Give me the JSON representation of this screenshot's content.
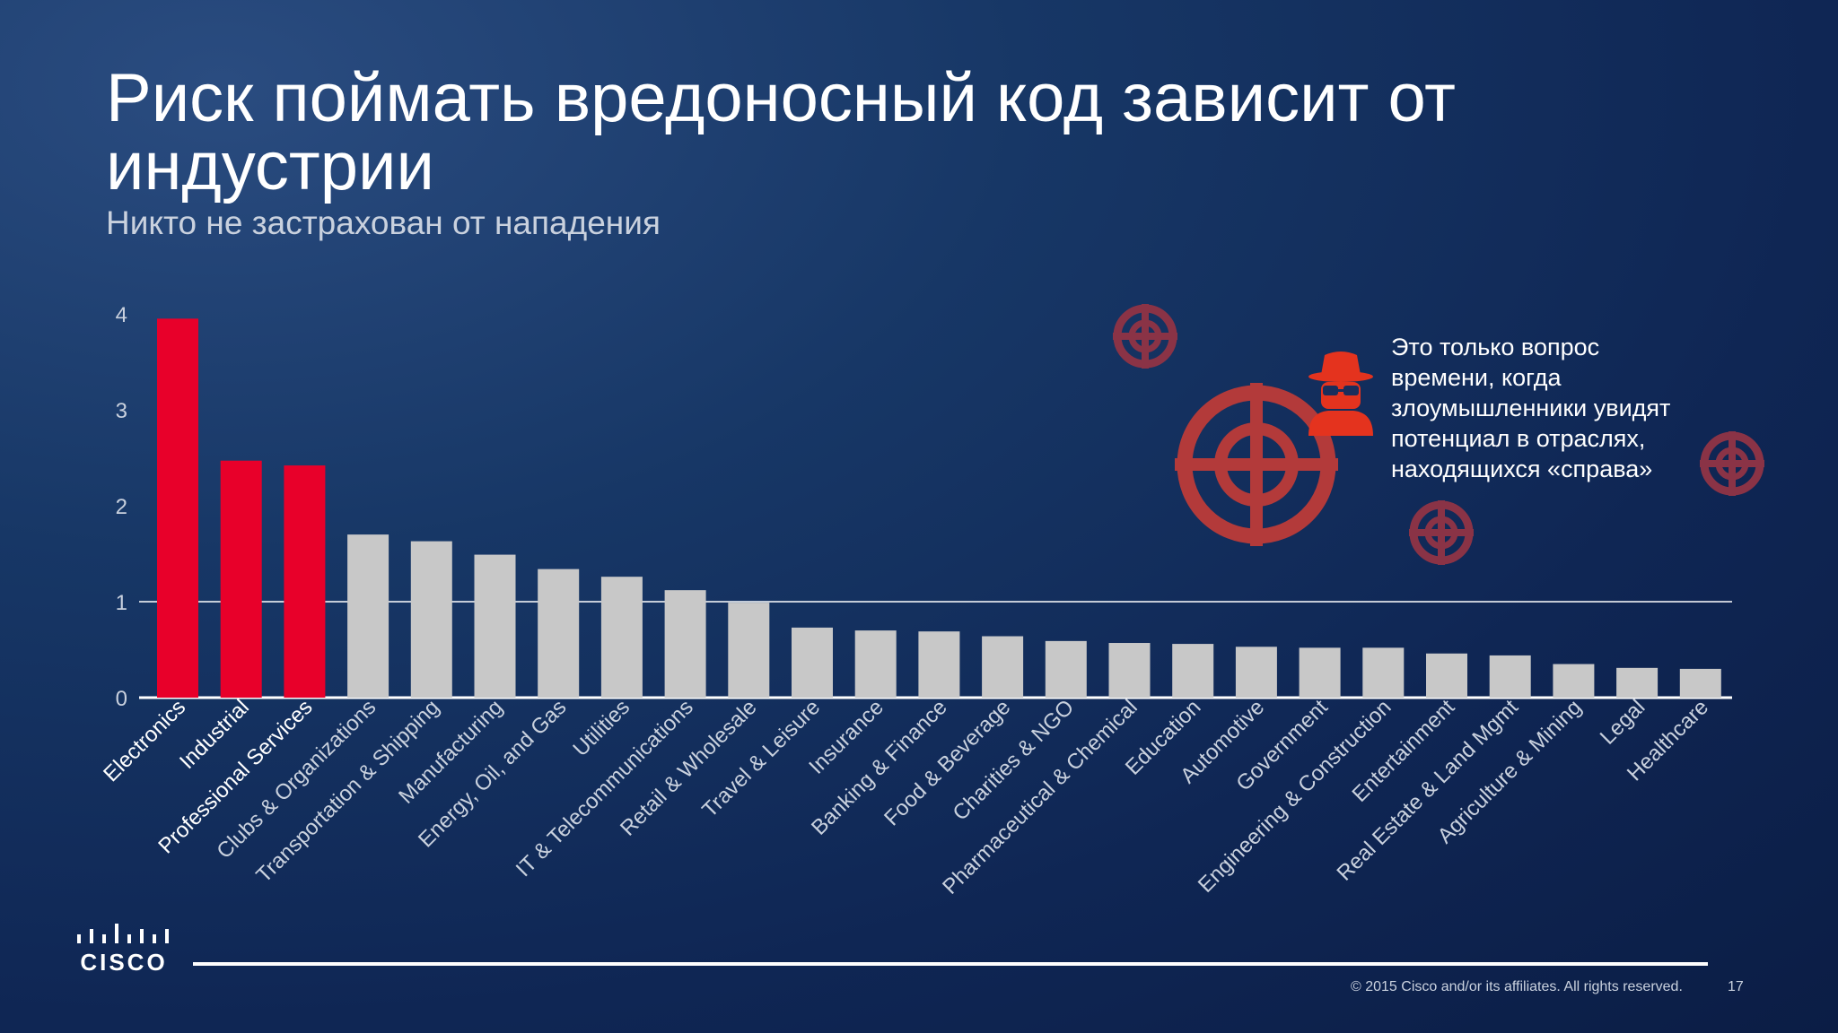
{
  "slide": {
    "title": "Риск поймать вредоносный код зависит от индустрии",
    "subtitle": "Никто не застрахован от нападения",
    "callout": "Это только вопрос времени, когда злоумышленники увидят потенциал в отраслях, находящихся «справа»",
    "logo_text": "CISCO",
    "copyright": "© 2015  Cisco and/or its affiliates. All rights reserved.",
    "page_number": "17"
  },
  "colors": {
    "highlight": "#e8002a",
    "normal": "#c8c8c8",
    "target": "#b33a3a",
    "small_target": "#8a3346",
    "hacker": "#e4331e",
    "axis": "#ffffff"
  },
  "icons": [
    "target-icon",
    "hacker-icon"
  ],
  "chart_data": {
    "type": "bar",
    "title": "",
    "xlabel": "",
    "ylabel": "",
    "ylim": [
      0,
      4
    ],
    "yticks": [
      0,
      1,
      2,
      3,
      4
    ],
    "reference_line": 1,
    "highlight_count": 3,
    "categories": [
      "Electronics",
      "Industrial",
      "Professional Services",
      "Clubs & Organizations",
      "Transportation & Shipping",
      "Manufacturing",
      "Energy, Oil, and Gas",
      "Utilities",
      "IT & Telecommunications",
      "Retail & Wholesale",
      "Travel & Leisure",
      "Insurance",
      "Banking & Finance",
      "Food & Beverage",
      "Charities & NGO",
      "Pharmaceutical & Chemical",
      "Education",
      "Automotive",
      "Government",
      "Engineering & Construction",
      "Entertainment",
      "Real Estate & Land Mgmt",
      "Agriculture & Mining",
      "Legal",
      "Healthcare"
    ],
    "values": [
      3.95,
      2.47,
      2.42,
      1.7,
      1.63,
      1.49,
      1.34,
      1.26,
      1.12,
      0.99,
      0.73,
      0.7,
      0.69,
      0.64,
      0.59,
      0.57,
      0.56,
      0.53,
      0.52,
      0.52,
      0.46,
      0.44,
      0.35,
      0.31,
      0.3
    ]
  }
}
